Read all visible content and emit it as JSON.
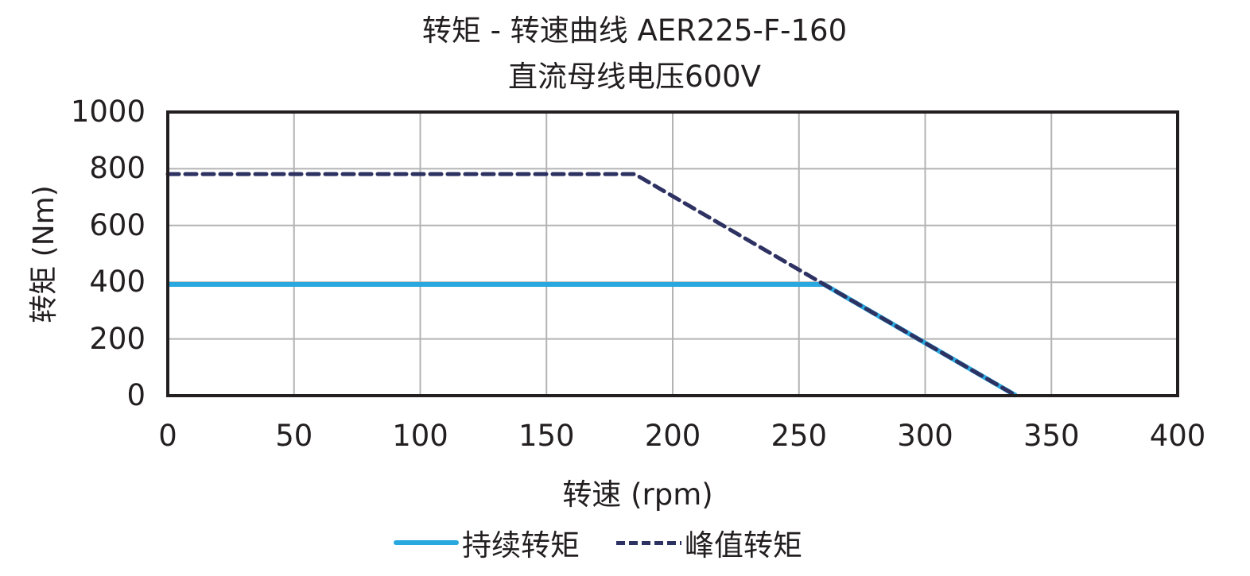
{
  "title": {
    "line1": "转矩 - 转速曲线 AER225-F-160",
    "line2": "直流母线电压600V"
  },
  "axes": {
    "xlabel": "转速 (rpm)",
    "ylabel": "转矩 (Nm)",
    "xticks": [
      "0",
      "50",
      "100",
      "150",
      "200",
      "250",
      "300",
      "350",
      "400"
    ],
    "yticks": [
      "1000",
      "800",
      "600",
      "400",
      "200",
      "0"
    ]
  },
  "legend": {
    "continuous": "持续转矩",
    "peak": "峰值转矩"
  },
  "colors": {
    "continuous": "#29a8df",
    "peak": "#2e3262",
    "grid": "#b3b3b3",
    "frame": "#231f20"
  },
  "chart_data": {
    "type": "line",
    "title": "转矩 - 转速曲线 AER225-F-160 / 直流母线电压600V",
    "xlabel": "转速 (rpm)",
    "ylabel": "转矩 (Nm)",
    "xlim": [
      0,
      400
    ],
    "ylim": [
      0,
      1000
    ],
    "xticks": [
      0,
      50,
      100,
      150,
      200,
      250,
      300,
      350,
      400
    ],
    "yticks": [
      0,
      200,
      400,
      600,
      800,
      1000
    ],
    "grid": true,
    "legend_position": "bottom",
    "series": [
      {
        "name": "持续转矩",
        "style": "solid",
        "color": "#29a8df",
        "x": [
          0,
          260,
          336
        ],
        "y": [
          392,
          392,
          0
        ]
      },
      {
        "name": "峰值转矩",
        "style": "dashed",
        "color": "#2e3262",
        "x": [
          0,
          185,
          260,
          336
        ],
        "y": [
          781,
          781,
          392,
          0
        ]
      }
    ]
  }
}
